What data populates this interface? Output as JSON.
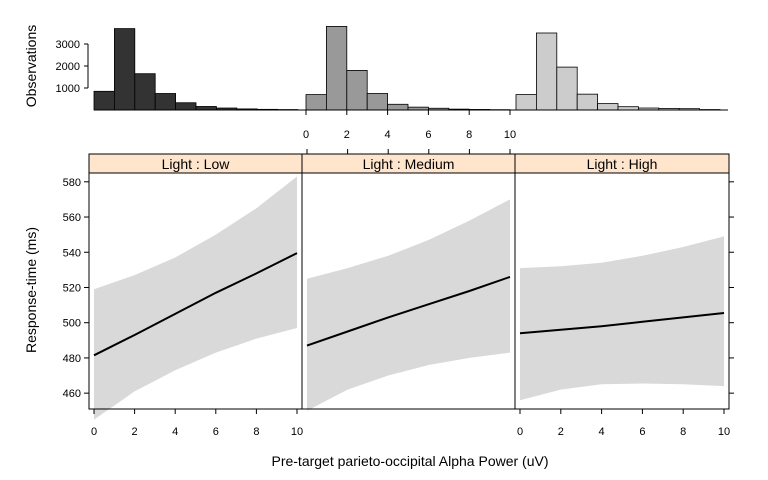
{
  "chart_data": [
    {
      "type": "bar",
      "role": "histogram",
      "ylabel": "Observations",
      "xlim": [
        0,
        10
      ],
      "ylim": [
        0,
        4000
      ],
      "y_ticks": [
        1000,
        2000,
        3000
      ],
      "y_tick_labels": [
        "1000",
        "2000",
        "3000"
      ],
      "x_ticks": [
        0,
        2,
        4,
        6,
        8,
        10
      ],
      "x_tick_labels": [
        "0",
        "2",
        "4",
        "6",
        "8",
        "10"
      ],
      "bin_edges": [
        0,
        1,
        2,
        3,
        4,
        5,
        6,
        7,
        8,
        9,
        10
      ],
      "series": [
        {
          "color": "#333333",
          "values": [
            850,
            3700,
            1650,
            750,
            330,
            160,
            90,
            50,
            30,
            20
          ]
        },
        {
          "color": "#999999",
          "values": [
            700,
            3800,
            1800,
            750,
            260,
            130,
            80,
            40,
            25,
            15
          ]
        },
        {
          "color": "#cccccc",
          "values": [
            700,
            3500,
            1950,
            720,
            290,
            150,
            90,
            70,
            60,
            20
          ]
        }
      ]
    },
    {
      "type": "line",
      "xlabel": "Pre-target parieto-occipital Alpha Power (uV)",
      "ylabel": "Response-time (ms)",
      "xlim": [
        0,
        10
      ],
      "ylim": [
        451,
        585
      ],
      "x_ticks": [
        0,
        2,
        4,
        6,
        8,
        10
      ],
      "x_tick_labels": [
        "0",
        "2",
        "4",
        "6",
        "8",
        "10"
      ],
      "y_ticks": [
        460,
        480,
        500,
        520,
        540,
        560,
        580
      ],
      "y_tick_labels": [
        "460",
        "480",
        "500",
        "520",
        "540",
        "560",
        "580"
      ],
      "band_color": "#d9d9d9",
      "strip_color": "#ffe5cc",
      "panels": [
        {
          "label": "Light : Low",
          "x": [
            0,
            2,
            4,
            6,
            8,
            10
          ],
          "fit": [
            481.5,
            493,
            505,
            517,
            528,
            539.5
          ],
          "lower": [
            445,
            461,
            473,
            483,
            491,
            497
          ],
          "upper": [
            519,
            527,
            537,
            550,
            565,
            583
          ]
        },
        {
          "label": "Light : Medium",
          "x": [
            0,
            2,
            4,
            6,
            8,
            10
          ],
          "fit": [
            487,
            495,
            503,
            510.5,
            518,
            526
          ],
          "lower": [
            450,
            462,
            470,
            476,
            480,
            483
          ],
          "upper": [
            525,
            531,
            538,
            547,
            558,
            570
          ]
        },
        {
          "label": "Light : High",
          "x": [
            0,
            2,
            4,
            6,
            8,
            10
          ],
          "fit": [
            494,
            496,
            498,
            500.5,
            503,
            505.5
          ],
          "lower": [
            456,
            462,
            465,
            465.5,
            465,
            464
          ],
          "upper": [
            531,
            532,
            534,
            538,
            543,
            549
          ]
        }
      ]
    }
  ]
}
